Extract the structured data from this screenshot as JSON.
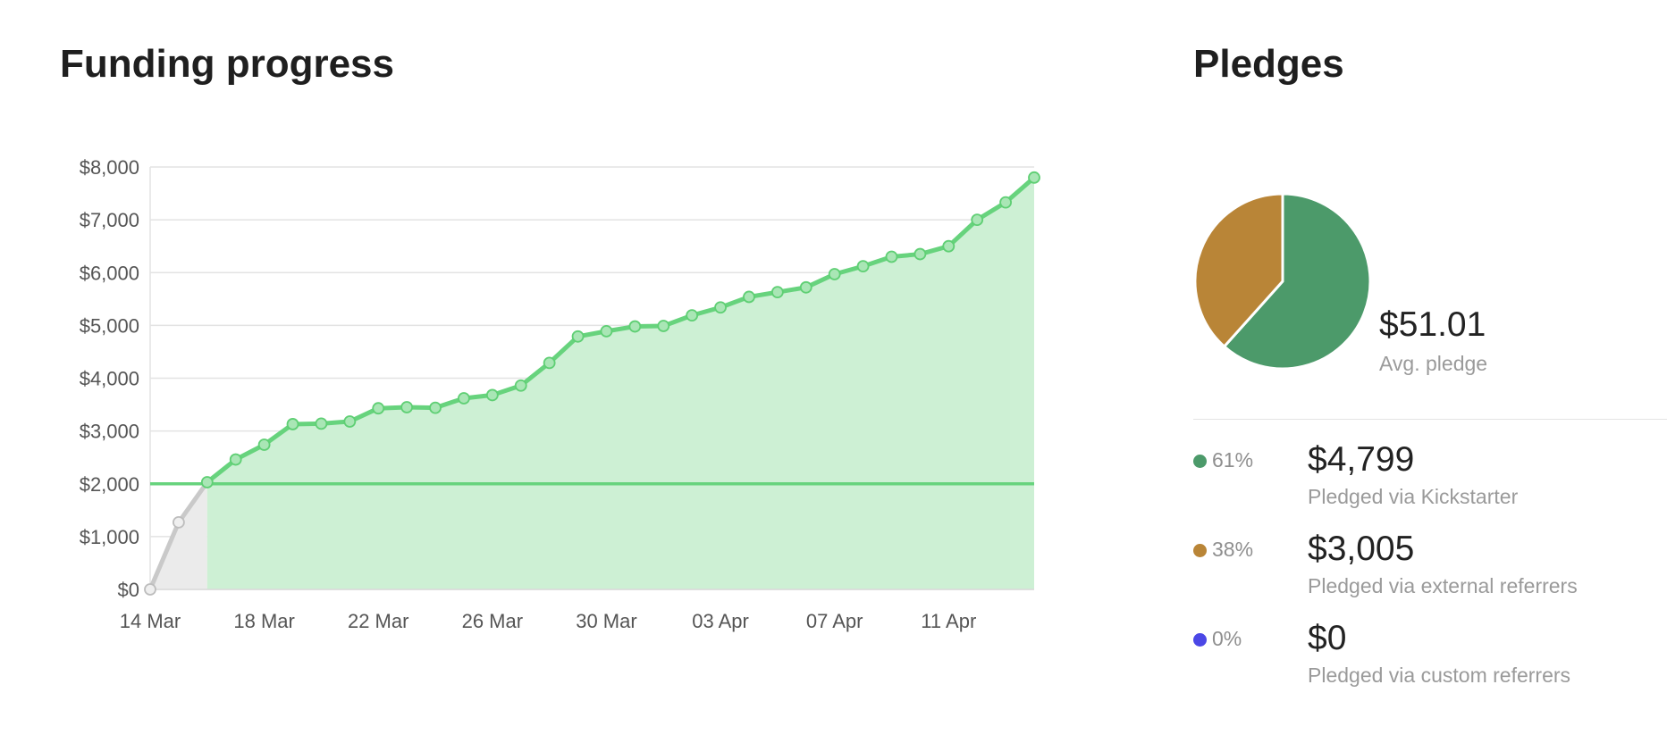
{
  "funding": {
    "title": "Funding progress"
  },
  "chart_data": {
    "type": "area",
    "title": "Funding progress",
    "xlabel": "",
    "ylabel": "",
    "x": [
      "14 Mar",
      "15 Mar",
      "16 Mar",
      "17 Mar",
      "18 Mar",
      "19 Mar",
      "20 Mar",
      "21 Mar",
      "22 Mar",
      "23 Mar",
      "24 Mar",
      "25 Mar",
      "26 Mar",
      "27 Mar",
      "28 Mar",
      "29 Mar",
      "30 Mar",
      "31 Mar",
      "01 Apr",
      "02 Apr",
      "03 Apr",
      "04 Apr",
      "05 Apr",
      "06 Apr",
      "07 Apr",
      "08 Apr",
      "09 Apr",
      "10 Apr",
      "11 Apr",
      "12 Apr",
      "13 Apr",
      "14 Apr"
    ],
    "values": [
      0,
      1270,
      2030,
      2460,
      2740,
      3130,
      3140,
      3180,
      3430,
      3450,
      3440,
      3620,
      3680,
      3860,
      4290,
      4790,
      4890,
      4980,
      4990,
      5190,
      5340,
      5540,
      5630,
      5720,
      5970,
      6120,
      6300,
      6350,
      6500,
      7000,
      7330,
      7800
    ],
    "highlight_from_index": 2,
    "goal_line": 2000,
    "ylim": [
      0,
      8000
    ],
    "yticks": [
      "$0",
      "$1,000",
      "$2,000",
      "$3,000",
      "$4,000",
      "$5,000",
      "$6,000",
      "$7,000",
      "$8,000"
    ],
    "xticks": [
      "14 Mar",
      "18 Mar",
      "22 Mar",
      "26 Mar",
      "30 Mar",
      "03 Apr",
      "07 Apr",
      "11 Apr"
    ],
    "xtick_indices": [
      0,
      4,
      8,
      12,
      16,
      20,
      24,
      28
    ],
    "grid": true,
    "colors": {
      "line": "#67d37d",
      "fill": "#cdf0d4",
      "pre_line": "#c9c9c9",
      "pre_fill": "#ebebeb",
      "goal": "#67d37d"
    }
  },
  "pledges": {
    "title": "Pledges",
    "pie": {
      "type": "pie",
      "slices": [
        {
          "label": "Pledged via Kickstarter",
          "value": 61,
          "color": "#4c9a6a"
        },
        {
          "label": "Pledged via external referrers",
          "value": 38,
          "color": "#b98537"
        },
        {
          "label": "Pledged via custom referrers",
          "value": 0,
          "color": "#4b47e6"
        }
      ]
    },
    "avg_value": "$51.01",
    "avg_label": "Avg. pledge",
    "rows": [
      {
        "pct": "61%",
        "amount": "$4,799",
        "label": "Pledged via Kickstarter",
        "color": "#4c9a6a"
      },
      {
        "pct": "38%",
        "amount": "$3,005",
        "label": "Pledged via external referrers",
        "color": "#b98537"
      },
      {
        "pct": "0%",
        "amount": "$0",
        "label": "Pledged via custom referrers",
        "color": "#4b47e6"
      }
    ]
  }
}
